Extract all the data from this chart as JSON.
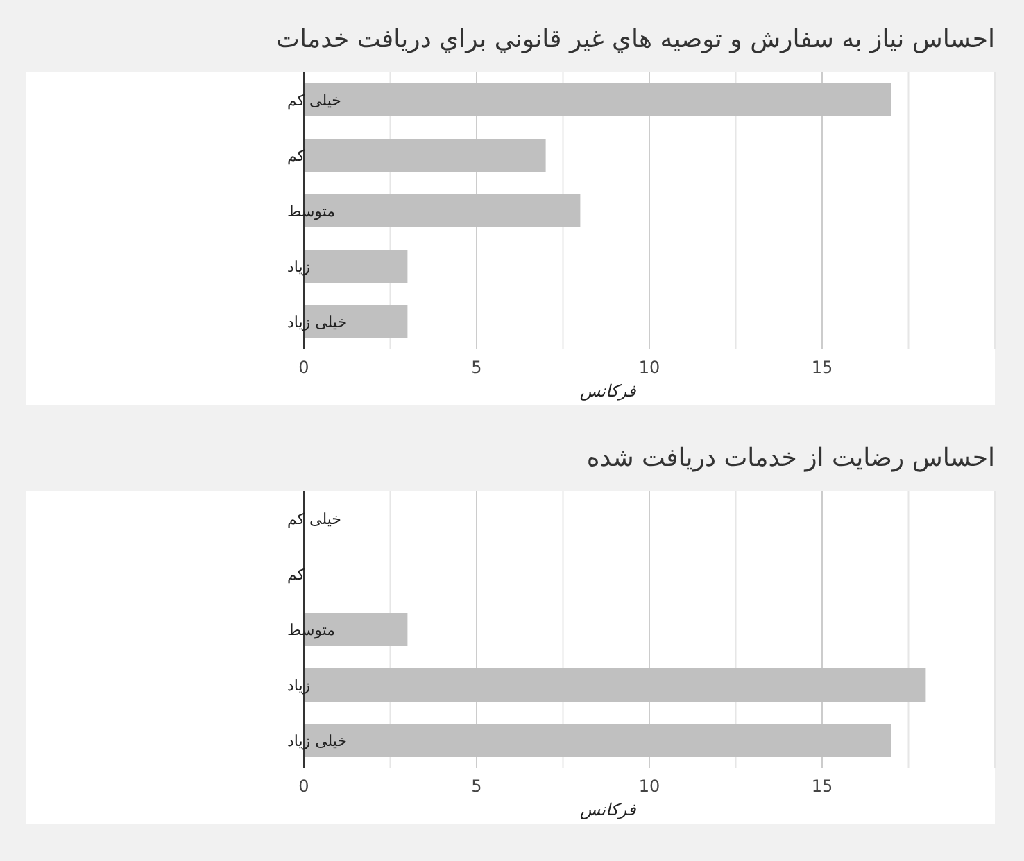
{
  "chart_data": [
    {
      "type": "bar",
      "orientation": "horizontal",
      "title": "احساس نیاز به سفارش و توصیه هاي غیر قانوني براي دریافت خدمات",
      "xlabel": "فرکانس",
      "categories": [
        "خیلی کم",
        "کم",
        "متوسط",
        "زیاد",
        "خیلی زیاد"
      ],
      "values": [
        17,
        7,
        8,
        3,
        3
      ],
      "color": "#c0c0c0",
      "xlim": [
        0,
        20
      ],
      "xticks": [
        0,
        {
          "value": 2.5,
          "label": null
        },
        5,
        {
          "value": 7.5,
          "label": null
        },
        10,
        {
          "value": 12.5,
          "label": null
        },
        15,
        {
          "value": 17.5,
          "label": null
        },
        {
          "value": 20,
          "label": null
        }
      ],
      "grid": "x"
    },
    {
      "type": "bar",
      "orientation": "horizontal",
      "title": "احساس رضایت از خدمات دریافت شده",
      "xlabel": "فرکانس",
      "categories": [
        "خیلی کم",
        "کم",
        "متوسط",
        "زیاد",
        "خیلی زیاد"
      ],
      "values": [
        0,
        0,
        3,
        18,
        17
      ],
      "color": "#c0c0c0",
      "xlim": [
        0,
        20
      ],
      "xticks": [
        0,
        {
          "value": 2.5,
          "label": null
        },
        5,
        {
          "value": 7.5,
          "label": null
        },
        10,
        {
          "value": 12.5,
          "label": null
        },
        15,
        {
          "value": 17.5,
          "label": null
        },
        {
          "value": 20,
          "label": null
        }
      ],
      "grid": "x"
    }
  ]
}
